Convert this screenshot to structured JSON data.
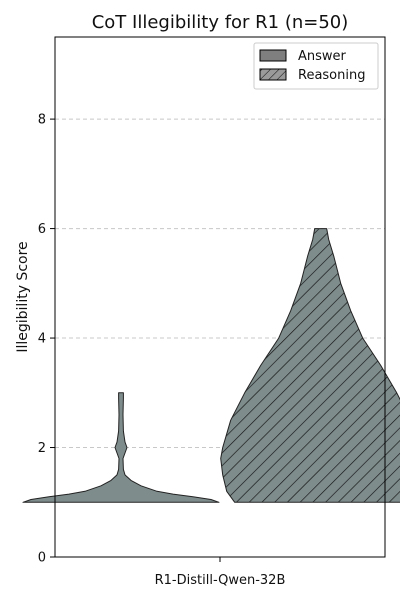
{
  "chart_data": {
    "type": "violin",
    "title": "CoT Illegibility for R1 (n=50)",
    "xlabel": "",
    "ylabel": "Illegibility Score",
    "categories": [
      "R1-Distill-Qwen-32B"
    ],
    "ylim": [
      0,
      9.5
    ],
    "yticks": [
      0,
      2,
      4,
      6,
      8
    ],
    "grid": "y-dashed",
    "legend_position": "top-right",
    "fill_color": "#7f8c8c",
    "series": [
      {
        "name": "Answer",
        "pattern": "solid",
        "min": 1.0,
        "max": 3.0,
        "density_profile": [
          [
            1.0,
            0.49
          ],
          [
            1.05,
            0.45
          ],
          [
            1.1,
            0.36
          ],
          [
            1.15,
            0.26
          ],
          [
            1.2,
            0.18
          ],
          [
            1.3,
            0.1
          ],
          [
            1.4,
            0.05
          ],
          [
            1.5,
            0.02
          ],
          [
            1.6,
            0.012
          ],
          [
            1.8,
            0.01
          ],
          [
            1.9,
            0.02
          ],
          [
            2.0,
            0.03
          ],
          [
            2.1,
            0.02
          ],
          [
            2.3,
            0.012
          ],
          [
            2.6,
            0.01
          ],
          [
            2.9,
            0.012
          ],
          [
            3.0,
            0.012
          ]
        ]
      },
      {
        "name": "Reasoning",
        "pattern": "hatched",
        "min": 1.0,
        "max": 6.0,
        "density_profile": [
          [
            1.0,
            0.43
          ],
          [
            1.2,
            0.47
          ],
          [
            1.5,
            0.49
          ],
          [
            1.8,
            0.5
          ],
          [
            2.0,
            0.49
          ],
          [
            2.5,
            0.45
          ],
          [
            3.0,
            0.38
          ],
          [
            3.5,
            0.3
          ],
          [
            4.0,
            0.21
          ],
          [
            4.5,
            0.15
          ],
          [
            5.0,
            0.1
          ],
          [
            5.5,
            0.065
          ],
          [
            5.8,
            0.04
          ],
          [
            6.0,
            0.03
          ]
        ]
      }
    ]
  }
}
